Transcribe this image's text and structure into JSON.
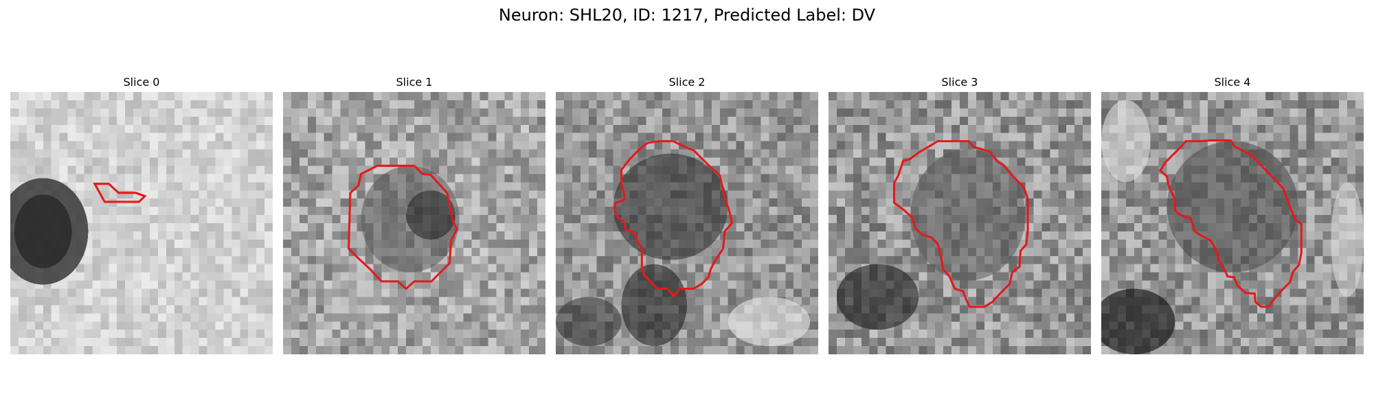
{
  "figure": {
    "title": "Neuron: SHL20, ID: 1217, Predicted Label: DV"
  },
  "panels": [
    {
      "title": "Slice 0"
    },
    {
      "title": "Slice 1"
    },
    {
      "title": "Slice 2"
    },
    {
      "title": "Slice 3"
    },
    {
      "title": "Slice 4"
    }
  ],
  "colors": {
    "contour": "#e41a1c",
    "background": "#ffffff"
  }
}
